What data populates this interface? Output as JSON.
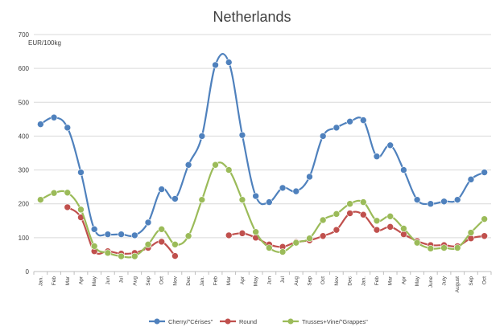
{
  "chart_data": {
    "type": "line",
    "title": "Netherlands",
    "ylabel": "EUR/100kg",
    "ylim": [
      0,
      700
    ],
    "yticks": [
      0,
      100,
      200,
      300,
      400,
      500,
      600,
      700
    ],
    "grid": true,
    "legend_position": "bottom",
    "categories": [
      "Jan.",
      "Feb",
      "Mar",
      "Apr",
      "May",
      "Jun",
      "Jul",
      "Aug",
      "Sep",
      "Oct",
      "Nov",
      "Dec",
      "Jan.",
      "Feb",
      "Mar",
      "Apr",
      "May",
      "Jun",
      "Jul",
      "Aug",
      "Sep",
      "Oct",
      "Nov",
      "Dec",
      "Jan.",
      "Feb",
      "Mar",
      "Apr",
      "May",
      "June",
      "July",
      "August",
      "Sep",
      "Oct"
    ],
    "series": [
      {
        "name": "Cherry/\"Cérises\"",
        "color": "#4f81bd",
        "values": [
          435,
          455,
          425,
          293,
          125,
          110,
          110,
          107,
          145,
          243,
          215,
          315,
          400,
          610,
          618,
          403,
          223,
          205,
          247,
          237,
          280,
          400,
          425,
          443,
          447,
          340,
          373,
          300,
          212,
          200,
          207,
          212,
          272,
          293
        ]
      },
      {
        "name": "Round",
        "color": "#c0504d",
        "values": [
          null,
          null,
          190,
          160,
          60,
          60,
          53,
          55,
          70,
          88,
          46,
          null,
          null,
          null,
          107,
          113,
          100,
          80,
          73,
          87,
          92,
          105,
          123,
          172,
          168,
          123,
          132,
          110,
          90,
          78,
          78,
          75,
          98,
          105
        ]
      },
      {
        "name": "Trusses+Vine/\"Grappes\"",
        "color": "#9bbb59",
        "values": [
          212,
          232,
          233,
          183,
          75,
          55,
          45,
          45,
          80,
          125,
          80,
          105,
          212,
          315,
          300,
          212,
          117,
          70,
          58,
          85,
          98,
          152,
          170,
          200,
          205,
          150,
          163,
          127,
          85,
          68,
          70,
          70,
          115,
          155
        ]
      }
    ]
  }
}
